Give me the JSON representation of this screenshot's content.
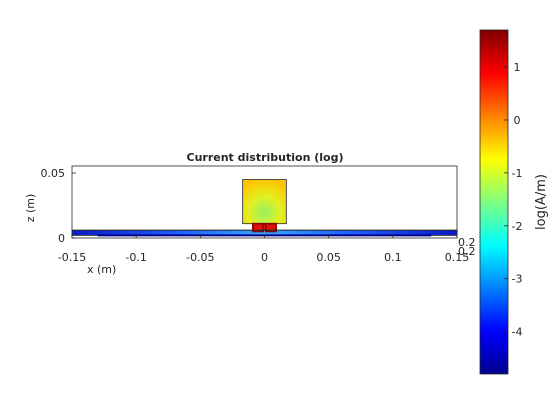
{
  "chart_data": {
    "type": "heatmap",
    "title": "Current distribution (log)",
    "xlabel": "x (m)",
    "zlabel": "z (m)",
    "xlim": [
      -0.15,
      0.15
    ],
    "zlim": [
      0,
      0.05
    ],
    "x_ticks": [
      "-0.15",
      "-0.1",
      "-0.05",
      "0",
      "0.05",
      "0.1",
      "0.15"
    ],
    "z_ticks": [
      "0",
      "0.05"
    ],
    "y_ticks": [
      "0.2",
      "0.2"
    ],
    "grid": false,
    "colorbar": {
      "label": "log(A/m)",
      "range": [
        -4.8,
        1.7
      ],
      "ticks": [
        "1",
        "0",
        "-1",
        "-2",
        "-3",
        "-4"
      ],
      "colormap": "jet"
    },
    "regions": [
      {
        "name": "patch",
        "x": [
          -0.017,
          0.017
        ],
        "z": [
          0.011,
          0.045
        ],
        "log_current_edges": -0.5,
        "log_current_center": -1.3
      },
      {
        "name": "feed",
        "x": [
          -0.009,
          0.009
        ],
        "z": [
          0.005,
          0.011
        ],
        "log_current": 1.6
      },
      {
        "name": "ground plane",
        "x": [
          -0.15,
          0.15
        ],
        "z": [
          0.002,
          0.006
        ],
        "log_current_edges": -4.4,
        "log_current_center": -2.7
      }
    ]
  }
}
